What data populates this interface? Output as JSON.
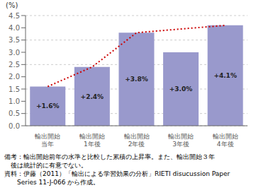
{
  "chart_data": {
    "type": "bar",
    "ylabel": "(%)",
    "categories": [
      "輸出開始\n当年",
      "輸出開始\n1年後",
      "輸出開始\n2年後",
      "輸出開始\n3年後",
      "輸出開始\n4年後"
    ],
    "series": [
      {
        "type": "bar",
        "color": "#9999cc",
        "values": [
          1.6,
          2.4,
          3.8,
          3.0,
          4.1
        ],
        "value_labels": [
          "+1.6%",
          "+2.4%",
          "+3.8%",
          "+3.0%",
          "+4.1%"
        ]
      },
      {
        "type": "line",
        "color": "#cc0000",
        "line_style": "dotted",
        "values": [
          1.6,
          2.4,
          3.8,
          null,
          4.1
        ]
      }
    ],
    "data_labels": true,
    "ylim": [
      0,
      4.5
    ],
    "yticks": [
      {
        "value": 0,
        "label": "0.0"
      },
      0.5,
      {
        "value": 1.0,
        "label": "1.0"
      },
      1.5,
      {
        "value": 2.0,
        "label": "2.0"
      },
      2.5,
      {
        "value": 3.0,
        "label": "3.0"
      },
      3.5,
      {
        "value": 4.0,
        "label": "4.0"
      },
      4.5
    ],
    "grid": true,
    "annotations": [
      "備考：輸出開始前年の水準と比較した累積の上昇率。また、輸出開始３年",
      "　後は統計的に有意でない。",
      "資料：伊藤（2011）「輸出による学習効果の分析」RIETI disucussion Paper",
      "　　Series 11-J-066 から作成。"
    ]
  }
}
